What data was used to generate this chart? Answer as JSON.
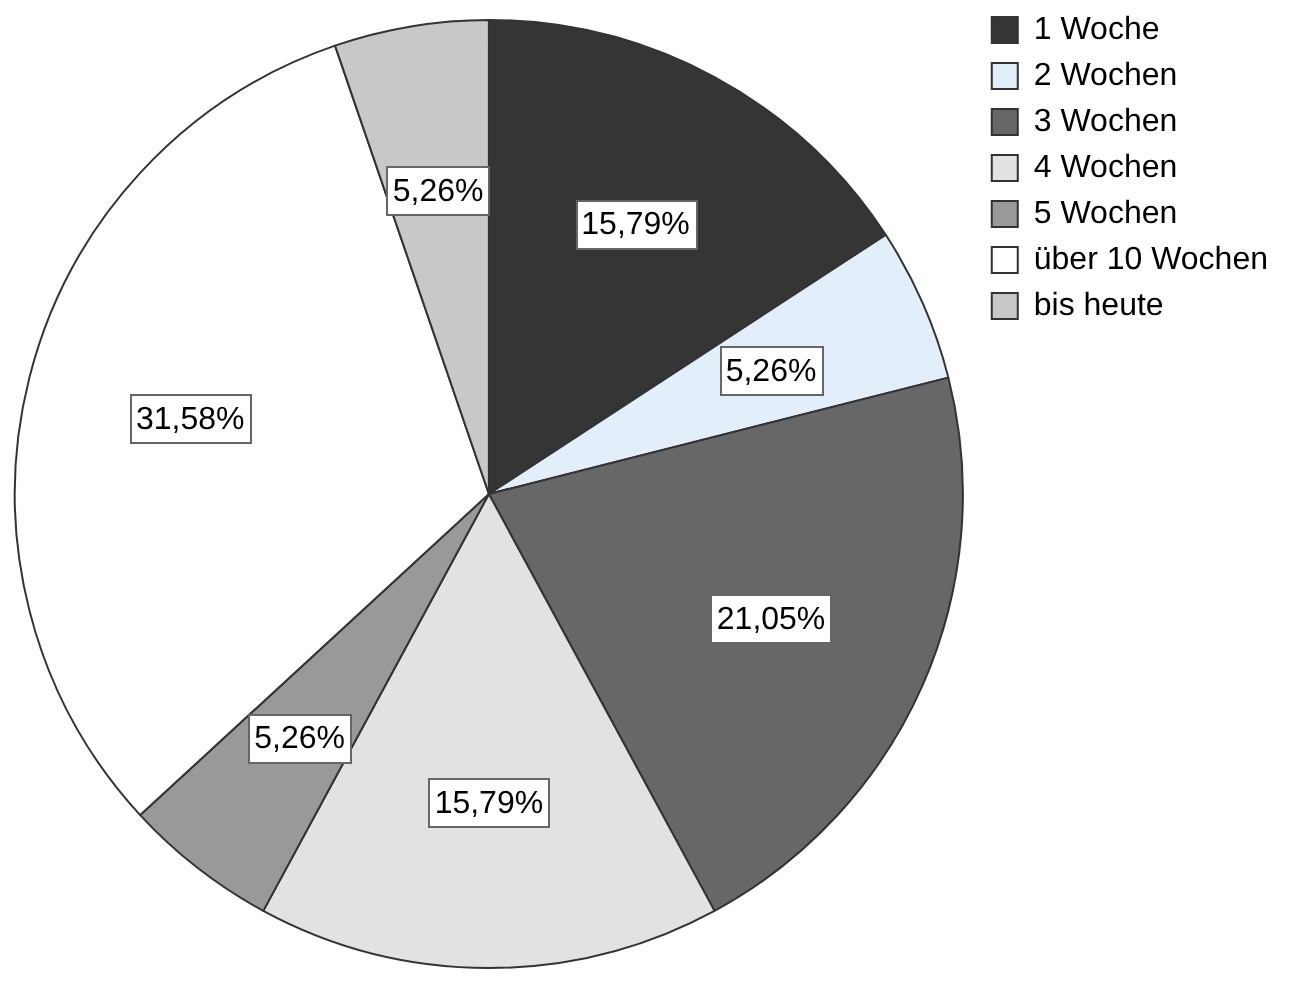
{
  "chart_data": {
    "type": "pie",
    "categories": [
      "1 Woche",
      "2 Wochen",
      "3 Wochen",
      "4 Wochen",
      "5 Wochen",
      "über 10 Wochen",
      "bis heute"
    ],
    "values": [
      15.79,
      5.26,
      21.05,
      15.79,
      5.26,
      31.58,
      5.26
    ],
    "colors": [
      "#353535",
      "#e3eefb",
      "#676767",
      "#e2e2e2",
      "#999999",
      "#ffffff",
      "#c8c8c8"
    ],
    "value_labels": [
      "15,79%",
      "5,26%",
      "21,05%",
      "15,79%",
      "5,26%",
      "31,58%",
      "5,26%"
    ],
    "legend": "top right"
  }
}
